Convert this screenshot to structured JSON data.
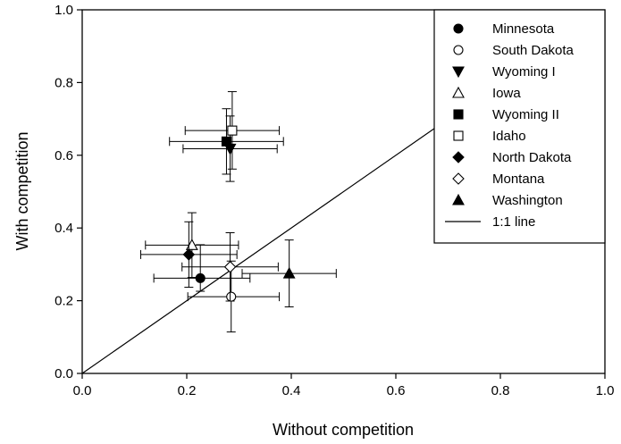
{
  "chart_data": {
    "type": "scatter",
    "title": "",
    "xlabel": "Without competition",
    "ylabel": "With competition",
    "xlim": [
      0.0,
      1.0
    ],
    "ylim": [
      0.0,
      1.0
    ],
    "xticks": [
      "0.0",
      "0.2",
      "0.4",
      "0.6",
      "0.8",
      "1.0"
    ],
    "yticks": [
      "0.0",
      "0.2",
      "0.4",
      "0.6",
      "0.8",
      "1.0"
    ],
    "grid": false,
    "legend_position": "top-right",
    "series": [
      {
        "name": "Minnesota",
        "marker": "circle-filled",
        "x": 0.226,
        "y": 0.262,
        "xerr": [
          0.137,
          0.321
        ],
        "yerr": [
          0.226,
          0.354
        ]
      },
      {
        "name": "South Dakota",
        "marker": "circle-open",
        "x": 0.285,
        "y": 0.211,
        "xerr": [
          0.202,
          0.377
        ],
        "yerr": [
          0.114,
          0.309
        ]
      },
      {
        "name": "Wyoming I",
        "marker": "triangle-down-filled",
        "x": 0.283,
        "y": 0.618,
        "xerr": [
          0.193,
          0.373
        ],
        "yerr": [
          0.528,
          0.708
        ]
      },
      {
        "name": "Iowa",
        "marker": "triangle-up-open",
        "x": 0.21,
        "y": 0.353,
        "xerr": [
          0.121,
          0.299
        ],
        "yerr": [
          0.264,
          0.442
        ]
      },
      {
        "name": "Wyoming II",
        "marker": "square-filled",
        "x": 0.276,
        "y": 0.638,
        "xerr": [
          0.167,
          0.385
        ],
        "yerr": [
          0.548,
          0.728
        ]
      },
      {
        "name": "Idaho",
        "marker": "square-open",
        "x": 0.287,
        "y": 0.668,
        "xerr": [
          0.197,
          0.377
        ],
        "yerr": [
          0.562,
          0.775
        ]
      },
      {
        "name": "North Dakota",
        "marker": "diamond-filled",
        "x": 0.204,
        "y": 0.327,
        "xerr": [
          0.112,
          0.296
        ],
        "yerr": [
          0.237,
          0.417
        ]
      },
      {
        "name": "Montana",
        "marker": "diamond-open",
        "x": 0.283,
        "y": 0.293,
        "xerr": [
          0.191,
          0.375
        ],
        "yerr": [
          0.199,
          0.387
        ]
      },
      {
        "name": "Washington",
        "marker": "triangle-up-filled",
        "x": 0.396,
        "y": 0.275,
        "xerr": [
          0.306,
          0.486
        ],
        "yerr": [
          0.183,
          0.367
        ]
      }
    ],
    "reference_line": {
      "name": "1:1 line",
      "x": [
        0.0,
        0.7
      ],
      "y": [
        0.0,
        0.7
      ]
    }
  }
}
